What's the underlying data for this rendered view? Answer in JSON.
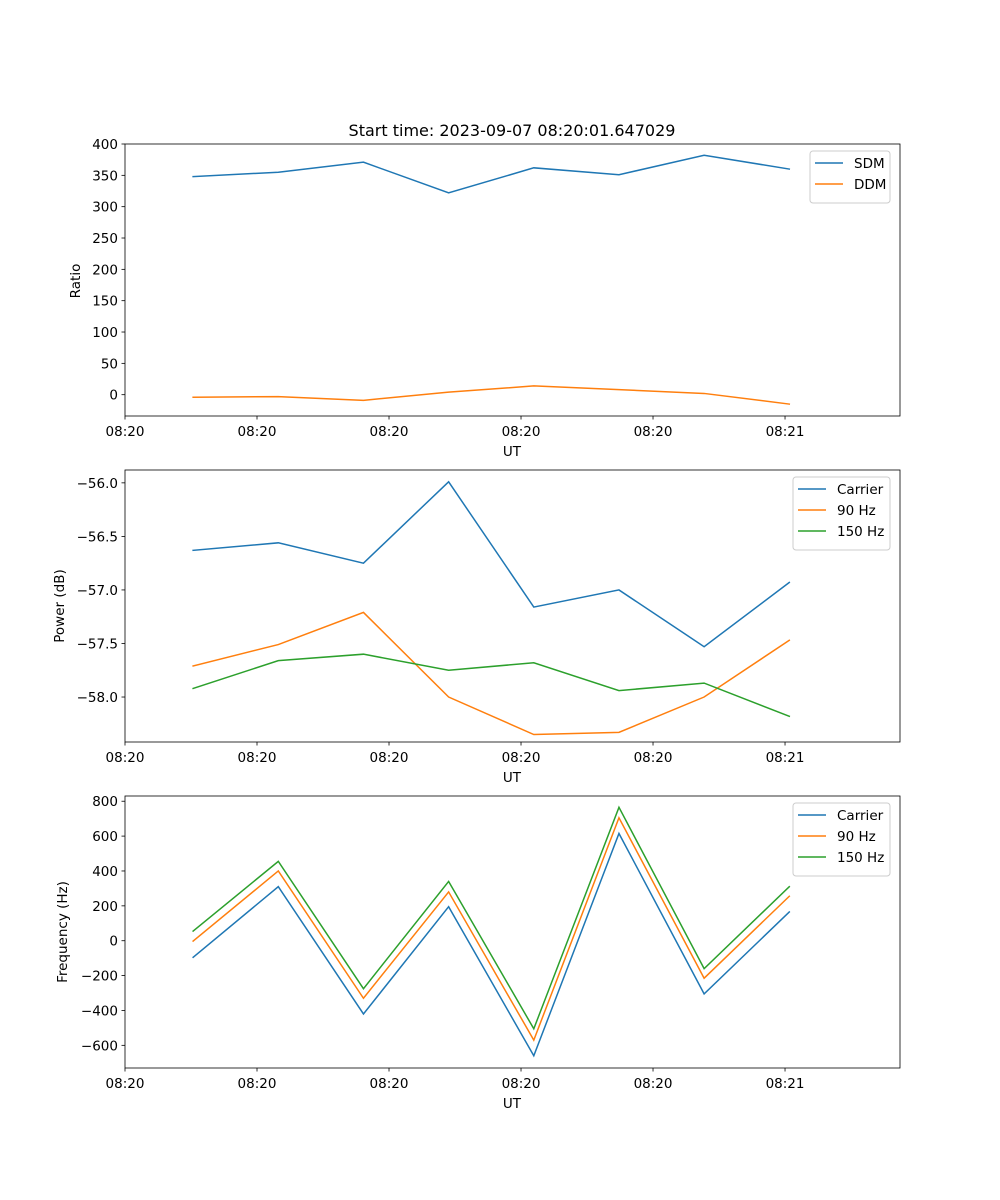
{
  "chart_data": [
    {
      "type": "line",
      "title": "Start time: 2023-09-07 08:20:01.647029",
      "xlabel": "UT",
      "ylabel": "Ratio",
      "x": [
        1,
        2,
        3,
        4,
        5,
        6,
        7,
        8
      ],
      "xlim": [
        0.2,
        9.3
      ],
      "x_ticks": [
        {
          "pos": 0.2,
          "label": "08:20"
        },
        {
          "pos": 1.75,
          "label": "08:20"
        },
        {
          "pos": 3.3,
          "label": "08:20"
        },
        {
          "pos": 4.85,
          "label": "08:20"
        },
        {
          "pos": 6.4,
          "label": "08:20"
        },
        {
          "pos": 7.95,
          "label": "08:21"
        }
      ],
      "ylim": [
        -34,
        400
      ],
      "y_ticks": [
        0,
        50,
        100,
        150,
        200,
        250,
        300,
        350,
        400
      ],
      "y_tick_labels": [
        "0",
        "50",
        "100",
        "150",
        "200",
        "250",
        "300",
        "350",
        "400"
      ],
      "legend": "upper right",
      "series": [
        {
          "name": "SDM",
          "color": "#1f77b4",
          "values": [
            348,
            355,
            371,
            322,
            362,
            351,
            382,
            360
          ]
        },
        {
          "name": "DDM",
          "color": "#ff7f0e",
          "values": [
            -4,
            -3,
            -9,
            4,
            14,
            8,
            2,
            -15
          ]
        }
      ]
    },
    {
      "type": "line",
      "title": "",
      "xlabel": "UT",
      "ylabel": "Power (dB)",
      "x": [
        1,
        2,
        3,
        4,
        5,
        6,
        7,
        8
      ],
      "xlim": [
        0.2,
        9.3
      ],
      "x_ticks": [
        {
          "pos": 0.2,
          "label": "08:20"
        },
        {
          "pos": 1.75,
          "label": "08:20"
        },
        {
          "pos": 3.3,
          "label": "08:20"
        },
        {
          "pos": 4.85,
          "label": "08:20"
        },
        {
          "pos": 6.4,
          "label": "08:20"
        },
        {
          "pos": 7.95,
          "label": "08:21"
        }
      ],
      "ylim": [
        -58.42,
        -55.88
      ],
      "y_ticks": [
        -58.0,
        -57.5,
        -57.0,
        -56.5,
        -56.0
      ],
      "y_tick_labels": [
        "−58.0",
        "−57.5",
        "−57.0",
        "−56.5",
        "−56.0"
      ],
      "legend": "upper right",
      "series": [
        {
          "name": "Carrier",
          "color": "#1f77b4",
          "values": [
            -56.63,
            -56.56,
            -56.75,
            -55.99,
            -57.16,
            -57.0,
            -57.53,
            -56.93
          ]
        },
        {
          "name": "90 Hz",
          "color": "#ff7f0e",
          "values": [
            -57.71,
            -57.51,
            -57.21,
            -58.0,
            -58.35,
            -58.33,
            -58.0,
            -57.47
          ]
        },
        {
          "name": "150 Hz",
          "color": "#2ca02c",
          "values": [
            -57.92,
            -57.66,
            -57.6,
            -57.75,
            -57.68,
            -57.94,
            -57.87,
            -58.18
          ]
        }
      ]
    },
    {
      "type": "line",
      "title": "",
      "xlabel": "UT",
      "ylabel": "Frequency (Hz)",
      "x": [
        1,
        2,
        3,
        4,
        5,
        6,
        7,
        8
      ],
      "xlim": [
        0.2,
        9.3
      ],
      "x_ticks": [
        {
          "pos": 0.2,
          "label": "08:20"
        },
        {
          "pos": 1.75,
          "label": "08:20"
        },
        {
          "pos": 3.3,
          "label": "08:20"
        },
        {
          "pos": 4.85,
          "label": "08:20"
        },
        {
          "pos": 6.4,
          "label": "08:20"
        },
        {
          "pos": 7.95,
          "label": "08:21"
        }
      ],
      "ylim": [
        -730,
        830
      ],
      "y_ticks": [
        -600,
        -400,
        -200,
        0,
        200,
        400,
        600,
        800
      ],
      "y_tick_labels": [
        "−600",
        "−400",
        "−200",
        "0",
        "200",
        "400",
        "600",
        "800"
      ],
      "legend": "upper right",
      "series": [
        {
          "name": "Carrier",
          "color": "#1f77b4",
          "values": [
            -95,
            310,
            -420,
            195,
            -660,
            615,
            -305,
            165
          ]
        },
        {
          "name": "90 Hz",
          "color": "#ff7f0e",
          "values": [
            -2,
            400,
            -330,
            280,
            -570,
            705,
            -215,
            255
          ]
        },
        {
          "name": "150 Hz",
          "color": "#2ca02c",
          "values": [
            55,
            455,
            -275,
            340,
            -505,
            765,
            -160,
            310
          ]
        }
      ]
    }
  ]
}
